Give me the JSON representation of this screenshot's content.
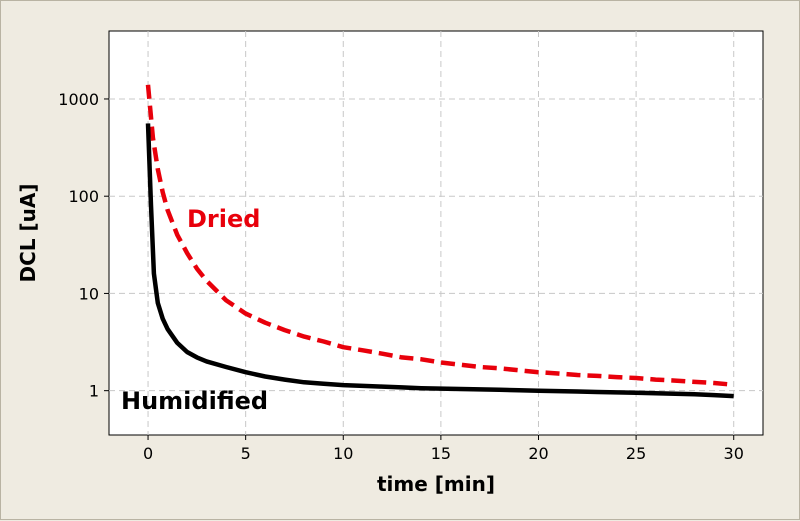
{
  "chart_data": {
    "type": "line",
    "title": "",
    "xlabel": "time [min]",
    "ylabel": "DCL [uA]",
    "xlim": [
      -2,
      31.5
    ],
    "ylim": [
      0.35,
      5000
    ],
    "yscale": "log",
    "grid": true,
    "x_ticks": [
      "0",
      "5",
      "10",
      "15",
      "20",
      "25",
      "30"
    ],
    "y_ticks": [
      "1",
      "10",
      "100",
      "1000"
    ],
    "series": [
      {
        "name": "Dried",
        "color": "#e8000b",
        "style": "dashed",
        "x": [
          0,
          0.25,
          0.5,
          0.75,
          1,
          1.5,
          2,
          2.5,
          3,
          4,
          5,
          6,
          7,
          8,
          9,
          10,
          11,
          12,
          13,
          14,
          15,
          16,
          17,
          18,
          19,
          20,
          21,
          22,
          23,
          24,
          25,
          26,
          27,
          28,
          29,
          30
        ],
        "y": [
          1400,
          400,
          190,
          110,
          72,
          40,
          26,
          18,
          13.5,
          8.5,
          6.2,
          5.0,
          4.2,
          3.6,
          3.2,
          2.8,
          2.6,
          2.4,
          2.2,
          2.1,
          1.95,
          1.85,
          1.75,
          1.7,
          1.62,
          1.55,
          1.5,
          1.45,
          1.42,
          1.38,
          1.35,
          1.3,
          1.27,
          1.23,
          1.2,
          1.15
        ]
      },
      {
        "name": "Humidified",
        "color": "#000000",
        "style": "solid",
        "x": [
          0,
          0.15,
          0.3,
          0.5,
          0.75,
          1,
          1.5,
          2,
          2.5,
          3,
          4,
          5,
          6,
          7,
          8,
          9,
          10,
          11,
          12,
          13,
          14,
          15,
          16,
          17,
          18,
          19,
          20,
          21,
          22,
          23,
          24,
          25,
          26,
          27,
          28,
          29,
          30
        ],
        "y": [
          560,
          80,
          16,
          8,
          5.5,
          4.3,
          3.1,
          2.5,
          2.2,
          2.0,
          1.75,
          1.55,
          1.4,
          1.3,
          1.22,
          1.18,
          1.14,
          1.12,
          1.1,
          1.08,
          1.06,
          1.05,
          1.04,
          1.03,
          1.02,
          1.01,
          1.0,
          0.99,
          0.98,
          0.97,
          0.96,
          0.95,
          0.94,
          0.93,
          0.92,
          0.9,
          0.88
        ]
      }
    ]
  }
}
